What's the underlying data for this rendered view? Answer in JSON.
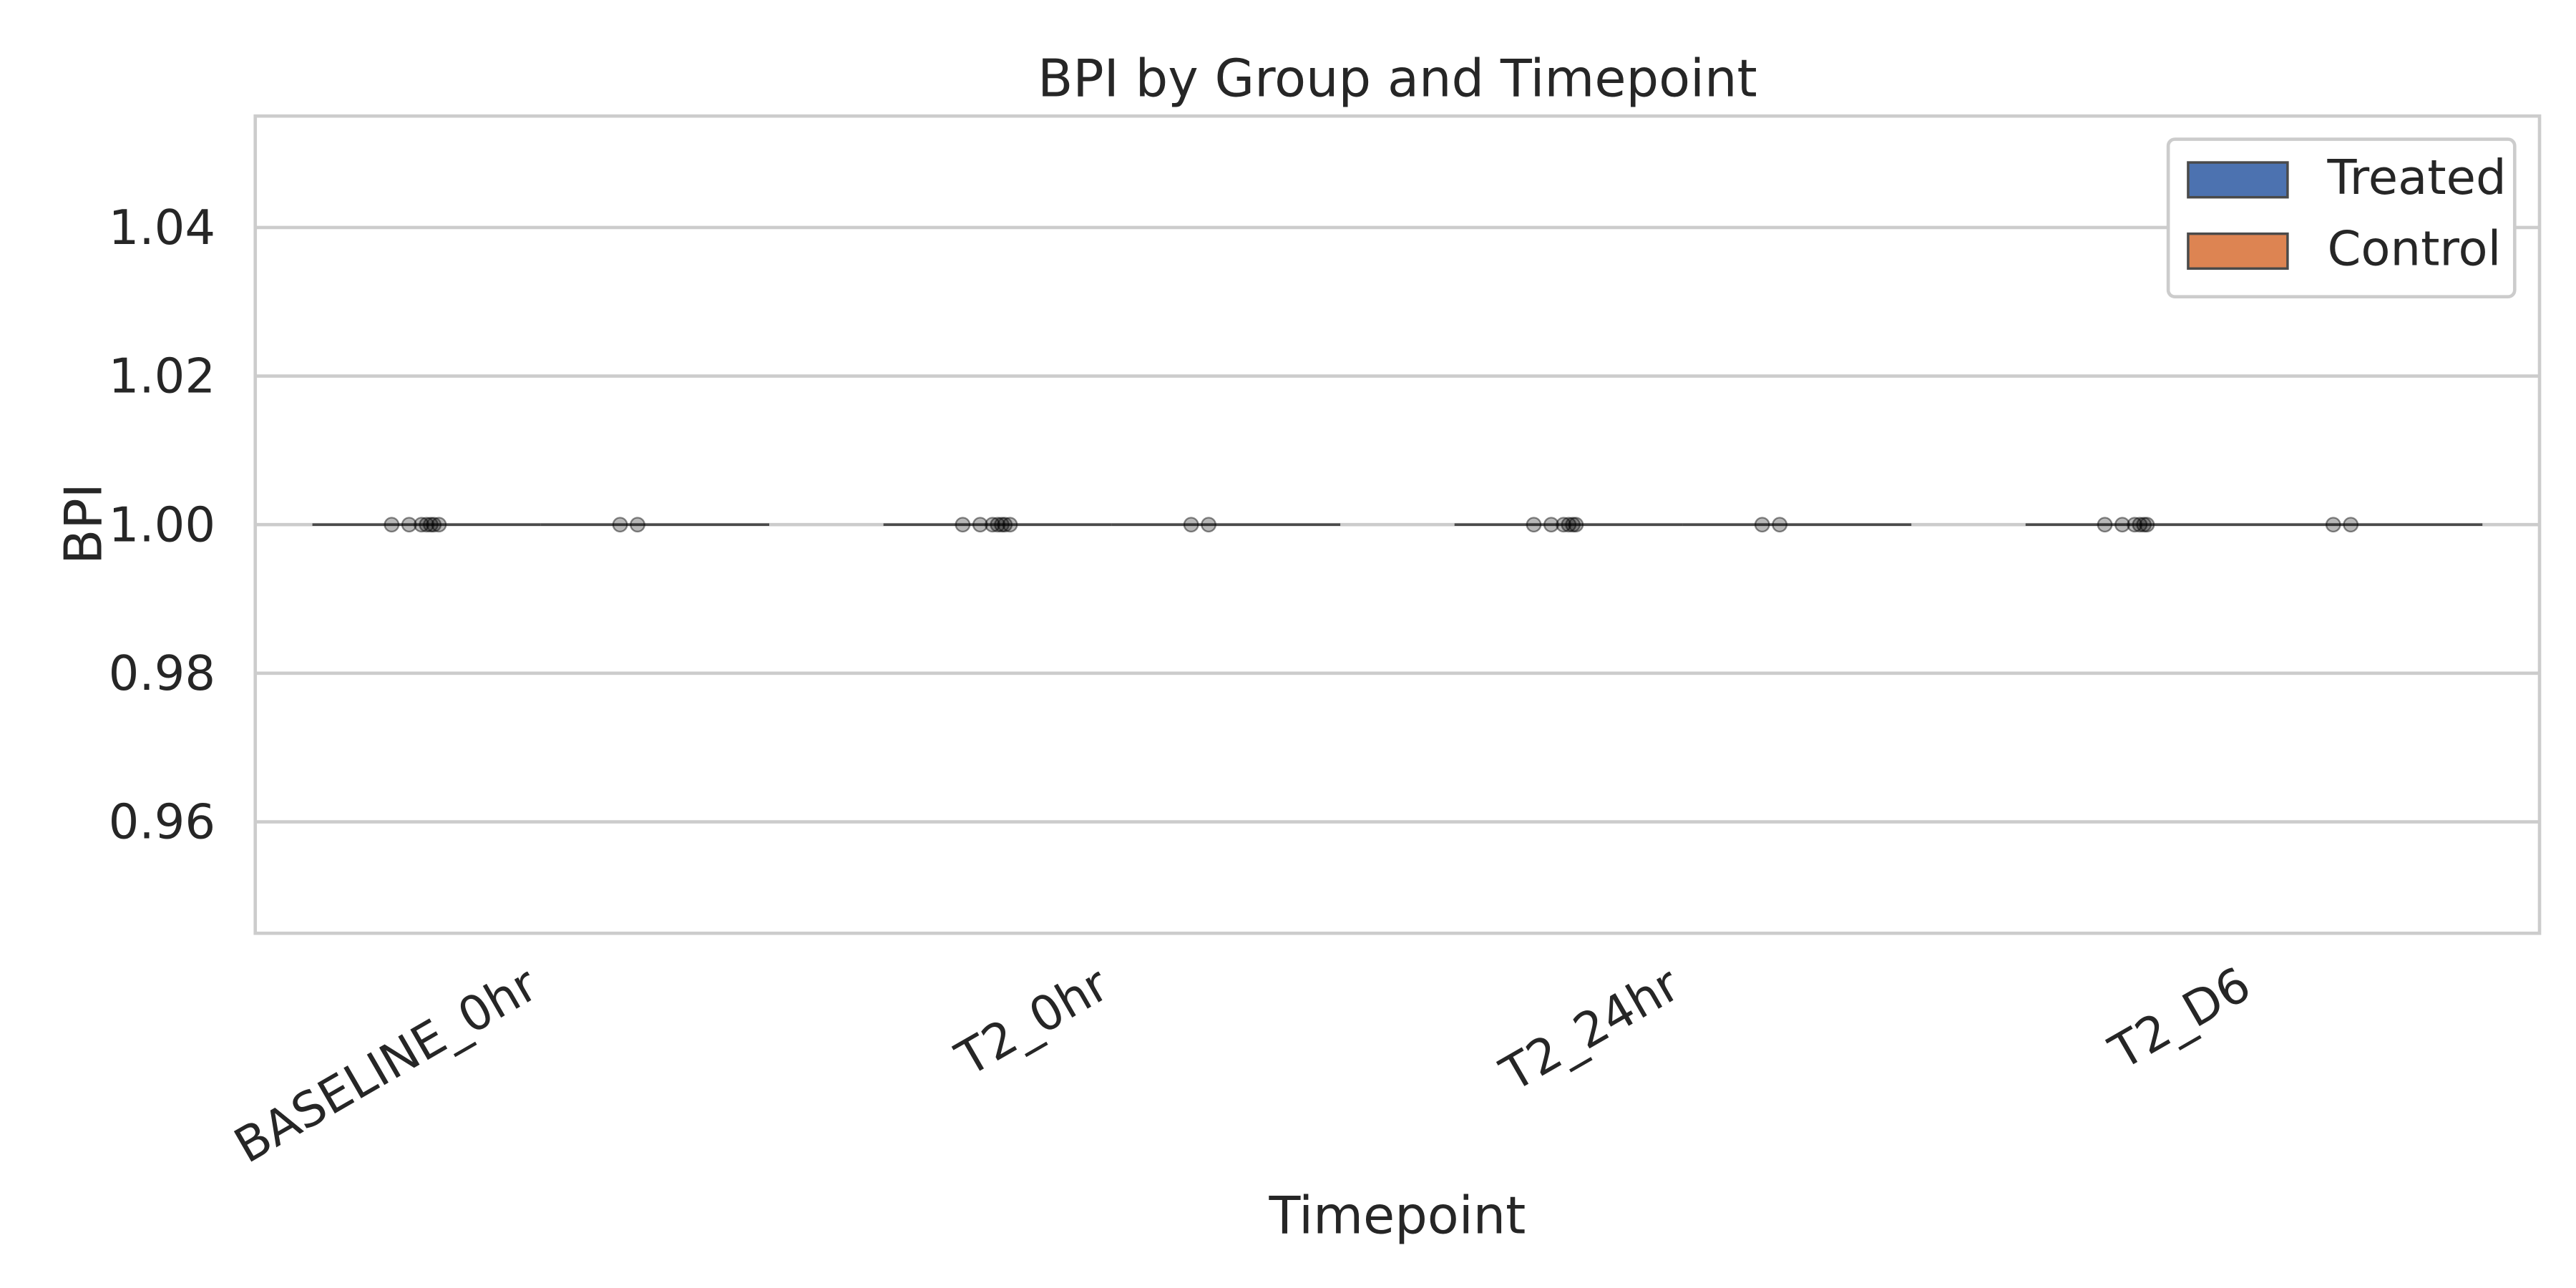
{
  "chart_data": {
    "type": "box",
    "title": "BPI by Group and Timepoint",
    "xlabel": "Timepoint",
    "ylabel": "BPI",
    "categories": [
      "BASELINE_0hr",
      "T2_0hr",
      "T2_24hr",
      "T2_D6"
    ],
    "ylim": [
      0.945,
      1.055
    ],
    "yticks": [
      0.96,
      0.98,
      1.0,
      1.02,
      1.04
    ],
    "ytick_labels": [
      "0.96",
      "0.98",
      "1.00",
      "1.02",
      "1.04"
    ],
    "grid": true,
    "legend_position": "top-right",
    "series": [
      {
        "name": "Treated",
        "color": "#4c72b0",
        "values": [
          [
            1,
            1,
            1,
            1,
            1,
            1,
            1
          ],
          [
            1,
            1,
            1,
            1,
            1,
            1,
            1
          ],
          [
            1,
            1,
            1,
            1,
            1,
            1
          ],
          [
            1,
            1,
            1,
            1,
            1,
            1
          ]
        ]
      },
      {
        "name": "Control",
        "color": "#dd8452",
        "values": [
          [
            1,
            1
          ],
          [
            1,
            1
          ],
          [
            1,
            1
          ],
          [
            1,
            1
          ]
        ]
      }
    ]
  }
}
